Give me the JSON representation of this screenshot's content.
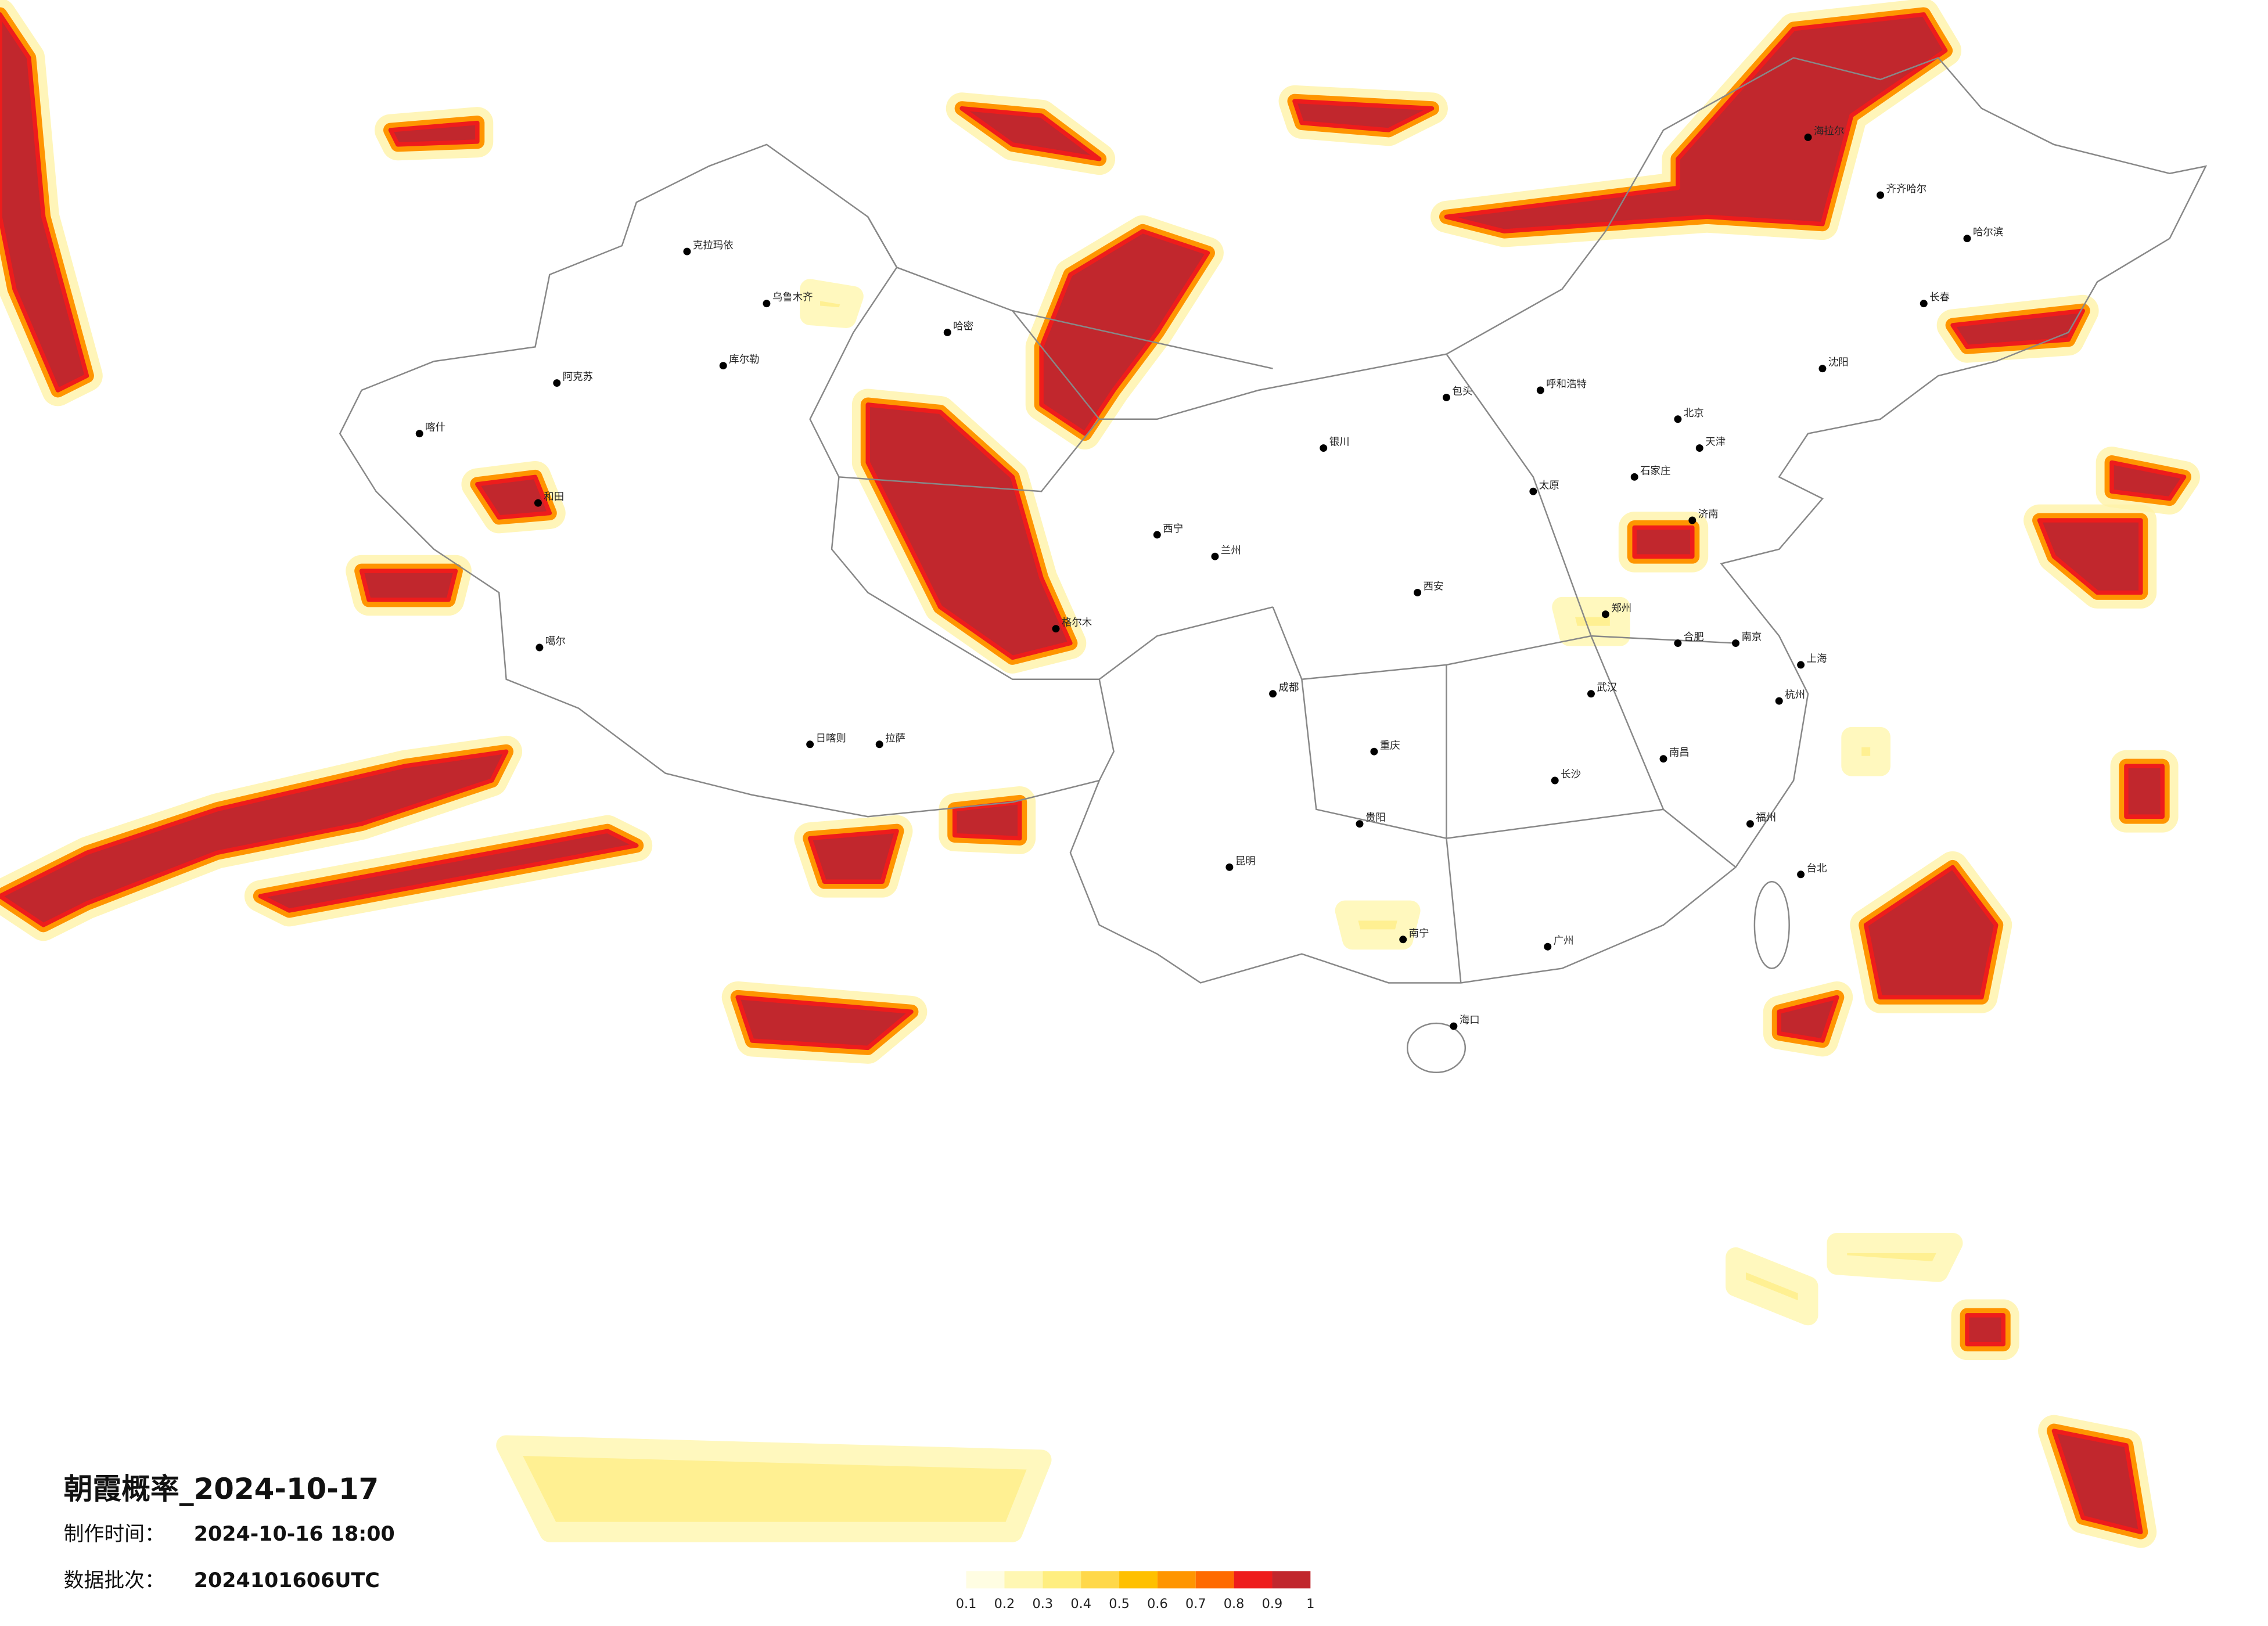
{
  "title": "朝霞概率_2024-10-17",
  "meta": [
    {
      "label": "制作时间：",
      "value": "2024-10-16 18:00"
    },
    {
      "label": "数据批次：",
      "value": "2024101606UTC"
    }
  ],
  "legend": {
    "ticks": [
      0.1,
      0.2,
      0.3,
      0.4,
      0.5,
      0.6,
      0.7,
      0.8,
      0.9,
      1
    ],
    "colors": [
      "#fffde2",
      "#fff7b3",
      "#ffee80",
      "#ffd84a",
      "#ffc000",
      "#ff9500",
      "#ff6a00",
      "#ee1c1c",
      "#c1272d"
    ]
  },
  "cities": [
    "克拉玛依",
    "乌鲁木齐",
    "哈密",
    "阿克苏",
    "喀什",
    "和田",
    "库尔勒",
    "格尔木",
    "拉萨",
    "日喀则",
    "噶尔",
    "西宁",
    "兰州",
    "银川",
    "呼和浩特",
    "包头",
    "北京",
    "天津",
    "石家庄",
    "太原",
    "济南",
    "郑州",
    "西安",
    "成都",
    "重庆",
    "武汉",
    "长沙",
    "南昌",
    "合肥",
    "南京",
    "上海",
    "杭州",
    "福州",
    "广州",
    "南宁",
    "贵阳",
    "昆明",
    "海口",
    "台北",
    "沈阳",
    "长春",
    "哈尔滨",
    "海拉尔",
    "齐齐哈尔"
  ]
}
